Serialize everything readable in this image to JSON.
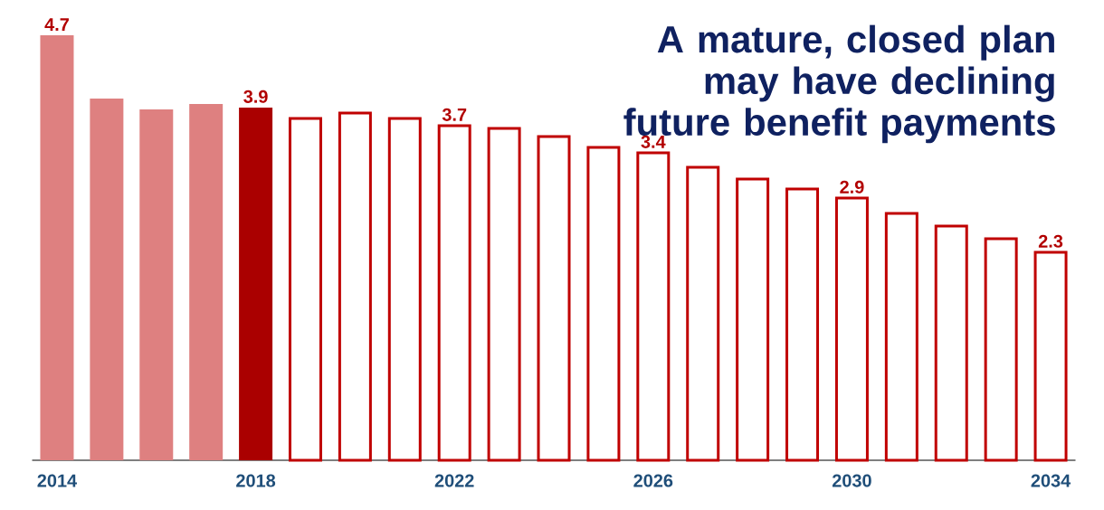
{
  "chart_data": {
    "type": "bar",
    "title": "A mature, closed plan may have declining future benefit payments",
    "categories": [
      "2014",
      null,
      null,
      null,
      "2018",
      null,
      null,
      null,
      "2022",
      null,
      null,
      null,
      "2026",
      null,
      null,
      null,
      "2030",
      null,
      null,
      null,
      "2034"
    ],
    "series": [
      {
        "colors": [
          "#de8080",
          "#de8080",
          "#de8080",
          "#de8080",
          "#aa0000",
          null,
          null,
          null,
          null,
          null,
          null,
          null,
          null,
          null,
          null,
          null,
          null,
          null,
          null,
          null,
          null
        ],
        "values": [
          4.7,
          4.0,
          3.88,
          3.94,
          3.9,
          null,
          null,
          null,
          null,
          null,
          null,
          null,
          null,
          null,
          null,
          null,
          null,
          null,
          null,
          null,
          null
        ],
        "value_labels": [
          "4.7",
          null,
          null,
          null,
          "3.9",
          null,
          null,
          null,
          null,
          null,
          null,
          null,
          null,
          null,
          null,
          null,
          null,
          null,
          null,
          null,
          null
        ]
      },
      {
        "color": "#c00000",
        "values": [
          null,
          null,
          null,
          null,
          null,
          3.78,
          3.84,
          3.78,
          3.7,
          3.67,
          3.58,
          3.46,
          3.4,
          3.24,
          3.11,
          3.0,
          2.9,
          2.73,
          2.59,
          2.45,
          2.3
        ],
        "value_labels": [
          null,
          null,
          null,
          null,
          null,
          null,
          null,
          null,
          "3.7",
          null,
          null,
          null,
          "3.4",
          null,
          null,
          null,
          "2.9",
          null,
          null,
          null,
          "2.3"
        ]
      }
    ]
  }
}
